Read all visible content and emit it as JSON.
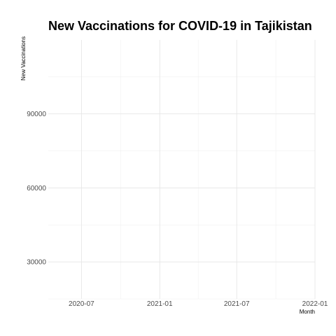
{
  "chart_data": {
    "type": "line",
    "title": "New Vaccinations for COVID-19 in Tajikistan",
    "xlabel": "Month",
    "ylabel": "New Vaccinations",
    "x_ticks": [
      "2020-07",
      "2021-01",
      "2021-07",
      "2022-01"
    ],
    "y_ticks": [
      30000,
      60000,
      90000
    ],
    "xlim": [
      "2020-04-14",
      "2022-01-01"
    ],
    "ylim": [
      15000,
      120000
    ],
    "grid": true,
    "legend": "none",
    "series": []
  }
}
